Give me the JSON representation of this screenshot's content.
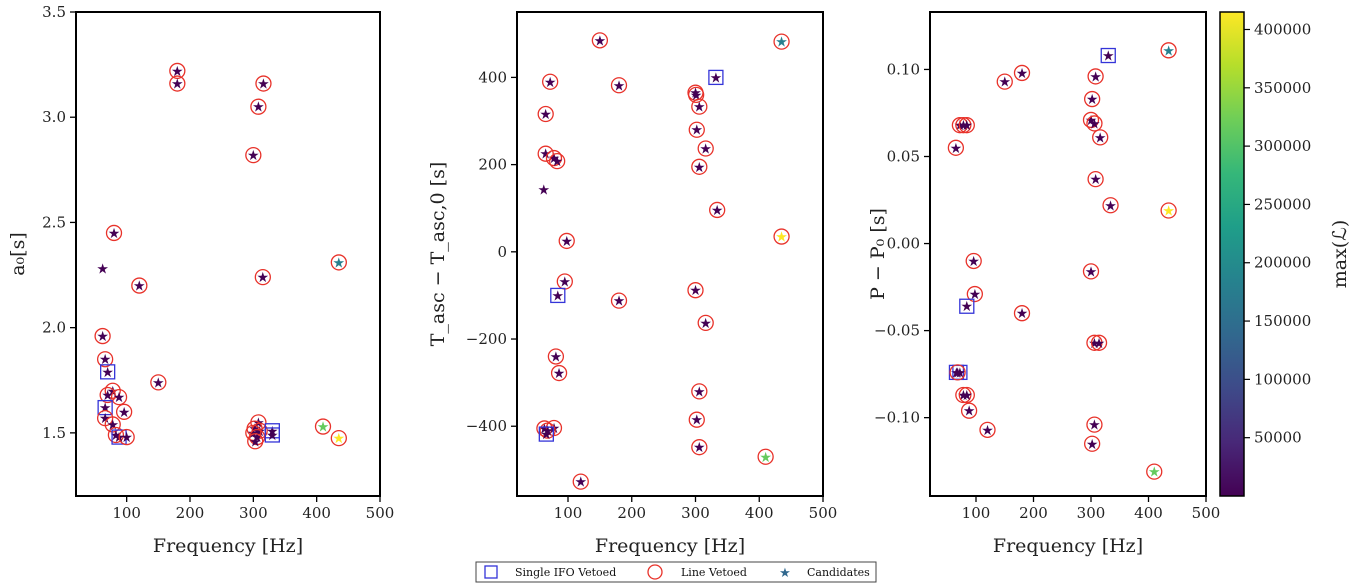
{
  "legend": {
    "single_ifo": "Single IFO Vetoed",
    "line_vetoed": "Line Vetoed",
    "candidates": "Candidates"
  },
  "colorbar": {
    "label": "max(ℒ)",
    "ticks": [
      "50000",
      "100000",
      "150000",
      "200000",
      "250000",
      "300000",
      "350000",
      "400000"
    ],
    "range": [
      0,
      415000
    ],
    "colormap": [
      "#440154",
      "#482878",
      "#3e4a89",
      "#31688e",
      "#26828e",
      "#1f9e89",
      "#35b779",
      "#6ece58",
      "#b5de2b",
      "#fde725"
    ]
  },
  "colors": {
    "candidate_default": "#440154",
    "line_vetoed": "#e8322a",
    "single_ifo": "#3434d8"
  },
  "chart_data": [
    {
      "type": "scatter",
      "xlabel": "Frequency [Hz]",
      "ylabel": "a₀[s]",
      "xlim": [
        20,
        500
      ],
      "ylim": [
        1.2,
        3.5
      ],
      "xticks": [
        100,
        200,
        300,
        400,
        500
      ],
      "xtick_labels": [
        "100",
        "200",
        "300",
        "400",
        "500"
      ],
      "yticks": [
        1.5,
        2.0,
        2.5,
        3.0,
        3.5
      ],
      "ytick_labels": [
        "1.5",
        "2.0",
        "2.5",
        "3.0",
        "3.5"
      ],
      "points": [
        {
          "x": 180,
          "y": 3.22,
          "c": 0,
          "line": true
        },
        {
          "x": 180,
          "y": 3.16,
          "c": 0,
          "line": true
        },
        {
          "x": 316,
          "y": 3.16,
          "c": 0,
          "line": true
        },
        {
          "x": 308,
          "y": 3.05,
          "c": 0,
          "line": true
        },
        {
          "x": 300,
          "y": 2.82,
          "c": 0,
          "line": true
        },
        {
          "x": 80,
          "y": 2.45,
          "c": 0,
          "line": true
        },
        {
          "x": 62,
          "y": 2.28,
          "c": 0
        },
        {
          "x": 315,
          "y": 2.24,
          "c": 0,
          "line": true
        },
        {
          "x": 120,
          "y": 2.2,
          "c": 0,
          "line": true
        },
        {
          "x": 435,
          "y": 2.31,
          "c": 180000,
          "line": true
        },
        {
          "x": 62,
          "y": 1.96,
          "c": 0,
          "line": true
        },
        {
          "x": 66,
          "y": 1.85,
          "c": 0,
          "line": true
        },
        {
          "x": 70,
          "y": 1.79,
          "c": 0,
          "single": true
        },
        {
          "x": 150,
          "y": 1.74,
          "c": 0,
          "line": true
        },
        {
          "x": 78,
          "y": 1.7,
          "c": 0,
          "line": true
        },
        {
          "x": 70,
          "y": 1.68,
          "c": 0,
          "line": true
        },
        {
          "x": 88,
          "y": 1.67,
          "c": 0,
          "line": true
        },
        {
          "x": 66,
          "y": 1.62,
          "c": 0,
          "single": true
        },
        {
          "x": 96,
          "y": 1.6,
          "c": 0,
          "line": true
        },
        {
          "x": 66,
          "y": 1.57,
          "c": 0,
          "line": true
        },
        {
          "x": 78,
          "y": 1.54,
          "c": 0,
          "line": true
        },
        {
          "x": 83,
          "y": 1.49,
          "c": 0,
          "line": true
        },
        {
          "x": 88,
          "y": 1.48,
          "c": 0,
          "single": true
        },
        {
          "x": 100,
          "y": 1.48,
          "c": 0,
          "line": true
        },
        {
          "x": 308,
          "y": 1.55,
          "c": 0,
          "line": true
        },
        {
          "x": 302,
          "y": 1.52,
          "c": 0,
          "line": true
        },
        {
          "x": 310,
          "y": 1.51,
          "c": 0,
          "line": true
        },
        {
          "x": 300,
          "y": 1.5,
          "c": 0,
          "line": true
        },
        {
          "x": 306,
          "y": 1.48,
          "c": 0,
          "line": true
        },
        {
          "x": 303,
          "y": 1.46,
          "c": 0,
          "line": true
        },
        {
          "x": 330,
          "y": 1.51,
          "c": 0,
          "single": true
        },
        {
          "x": 330,
          "y": 1.49,
          "c": 0,
          "single": true
        },
        {
          "x": 410,
          "y": 1.53,
          "c": 315000,
          "line": true
        },
        {
          "x": 435,
          "y": 1.475,
          "c": 415000,
          "line": true
        }
      ]
    },
    {
      "type": "scatter",
      "xlabel": "Frequency [Hz]",
      "ylabel": "T_asc − T_asc,0 [s]",
      "xlim": [
        20,
        500
      ],
      "ylim": [
        -560,
        550
      ],
      "xticks": [
        100,
        200,
        300,
        400,
        500
      ],
      "xtick_labels": [
        "100",
        "200",
        "300",
        "400",
        "500"
      ],
      "yticks": [
        -400,
        -200,
        0,
        200,
        400
      ],
      "ytick_labels": [
        "−400",
        "−200",
        "0",
        "200",
        "400"
      ],
      "points": [
        {
          "x": 150,
          "y": 485,
          "c": 0,
          "line": true
        },
        {
          "x": 435,
          "y": 482,
          "c": 180000,
          "line": true
        },
        {
          "x": 72,
          "y": 390,
          "c": 0,
          "line": true
        },
        {
          "x": 180,
          "y": 382,
          "c": 0,
          "line": true
        },
        {
          "x": 332,
          "y": 400,
          "c": 0,
          "single": true
        },
        {
          "x": 300,
          "y": 365,
          "c": 0,
          "line": true
        },
        {
          "x": 301,
          "y": 360,
          "c": 0,
          "line": true
        },
        {
          "x": 306,
          "y": 333,
          "c": 0,
          "line": true
        },
        {
          "x": 65,
          "y": 316,
          "c": 0,
          "line": true
        },
        {
          "x": 302,
          "y": 280,
          "c": 0,
          "line": true
        },
        {
          "x": 316,
          "y": 237,
          "c": 0,
          "line": true
        },
        {
          "x": 65,
          "y": 225,
          "c": 0,
          "line": true
        },
        {
          "x": 78,
          "y": 215,
          "c": 0,
          "line": true
        },
        {
          "x": 83,
          "y": 208,
          "c": 0,
          "line": true
        },
        {
          "x": 306,
          "y": 195,
          "c": 0,
          "line": true
        },
        {
          "x": 62,
          "y": 143,
          "c": 0
        },
        {
          "x": 334,
          "y": 96,
          "c": 0,
          "line": true
        },
        {
          "x": 435,
          "y": 35,
          "c": 415000,
          "line": true
        },
        {
          "x": 98,
          "y": 25,
          "c": 0,
          "line": true
        },
        {
          "x": 95,
          "y": -68,
          "c": 0,
          "line": true
        },
        {
          "x": 300,
          "y": -88,
          "c": 0,
          "line": true
        },
        {
          "x": 84,
          "y": -100,
          "c": 0,
          "single": true
        },
        {
          "x": 180,
          "y": -112,
          "c": 0,
          "line": true
        },
        {
          "x": 316,
          "y": -163,
          "c": 0,
          "line": true
        },
        {
          "x": 81,
          "y": -240,
          "c": 0,
          "line": true
        },
        {
          "x": 86,
          "y": -278,
          "c": 0,
          "line": true
        },
        {
          "x": 306,
          "y": -320,
          "c": 0,
          "line": true
        },
        {
          "x": 302,
          "y": -385,
          "c": 0,
          "line": true
        },
        {
          "x": 63,
          "y": -405,
          "c": 0,
          "line": true
        },
        {
          "x": 78,
          "y": -404,
          "c": 0,
          "line": true
        },
        {
          "x": 68,
          "y": -410,
          "c": 0,
          "line": true
        },
        {
          "x": 66,
          "y": -418,
          "c": 0,
          "single": true
        },
        {
          "x": 306,
          "y": -448,
          "c": 0,
          "line": true
        },
        {
          "x": 410,
          "y": -470,
          "c": 315000,
          "line": true
        },
        {
          "x": 120,
          "y": -527,
          "c": 0,
          "line": true
        }
      ]
    },
    {
      "type": "scatter",
      "xlabel": "Frequency [Hz]",
      "ylabel": "P − P₀ [s]",
      "xlim": [
        20,
        500
      ],
      "ylim": [
        -0.145,
        0.133
      ],
      "xticks": [
        100,
        200,
        300,
        400,
        500
      ],
      "xtick_labels": [
        "100",
        "200",
        "300",
        "400",
        "500"
      ],
      "yticks": [
        -0.1,
        -0.05,
        0.0,
        0.05,
        0.1
      ],
      "ytick_labels": [
        "−0.10",
        "−0.05",
        "0.00",
        "0.05",
        "0.10"
      ],
      "points": [
        {
          "x": 435,
          "y": 0.111,
          "c": 180000,
          "line": true
        },
        {
          "x": 330,
          "y": 0.108,
          "c": 0,
          "single": true
        },
        {
          "x": 180,
          "y": 0.098,
          "c": 0,
          "line": true
        },
        {
          "x": 150,
          "y": 0.093,
          "c": 0,
          "line": true
        },
        {
          "x": 308,
          "y": 0.096,
          "c": 0,
          "line": true
        },
        {
          "x": 302,
          "y": 0.083,
          "c": 0,
          "line": true
        },
        {
          "x": 300,
          "y": 0.071,
          "c": 0,
          "line": true
        },
        {
          "x": 306,
          "y": 0.069,
          "c": 0,
          "line": true
        },
        {
          "x": 72,
          "y": 0.068,
          "c": 0,
          "line": true
        },
        {
          "x": 78,
          "y": 0.068,
          "c": 0,
          "line": true
        },
        {
          "x": 84,
          "y": 0.068,
          "c": 0,
          "line": true
        },
        {
          "x": 316,
          "y": 0.061,
          "c": 0,
          "line": true
        },
        {
          "x": 65,
          "y": 0.055,
          "c": 0,
          "line": true
        },
        {
          "x": 308,
          "y": 0.037,
          "c": 0,
          "line": true
        },
        {
          "x": 334,
          "y": 0.022,
          "c": 0,
          "line": true
        },
        {
          "x": 435,
          "y": 0.019,
          "c": 415000,
          "line": true
        },
        {
          "x": 96,
          "y": -0.01,
          "c": 0,
          "line": true
        },
        {
          "x": 300,
          "y": -0.016,
          "c": 0,
          "line": true
        },
        {
          "x": 98,
          "y": -0.029,
          "c": 0,
          "line": true
        },
        {
          "x": 84,
          "y": -0.036,
          "c": 0,
          "single": true
        },
        {
          "x": 180,
          "y": -0.04,
          "c": 0,
          "line": true
        },
        {
          "x": 306,
          "y": -0.057,
          "c": 0,
          "line": true
        },
        {
          "x": 314,
          "y": -0.057,
          "c": 0,
          "line": true
        },
        {
          "x": 66,
          "y": -0.074,
          "c": 0,
          "single": true
        },
        {
          "x": 72,
          "y": -0.074,
          "c": 0,
          "single": true
        },
        {
          "x": 68,
          "y": -0.074,
          "c": 0,
          "line": true
        },
        {
          "x": 78,
          "y": -0.087,
          "c": 0,
          "line": true
        },
        {
          "x": 84,
          "y": -0.087,
          "c": 0,
          "line": true
        },
        {
          "x": 88,
          "y": -0.096,
          "c": 0,
          "line": true
        },
        {
          "x": 306,
          "y": -0.104,
          "c": 0,
          "line": true
        },
        {
          "x": 120,
          "y": -0.107,
          "c": 0,
          "line": true
        },
        {
          "x": 302,
          "y": -0.115,
          "c": 0,
          "line": true
        },
        {
          "x": 410,
          "y": -0.131,
          "c": 315000,
          "line": true
        }
      ]
    }
  ]
}
